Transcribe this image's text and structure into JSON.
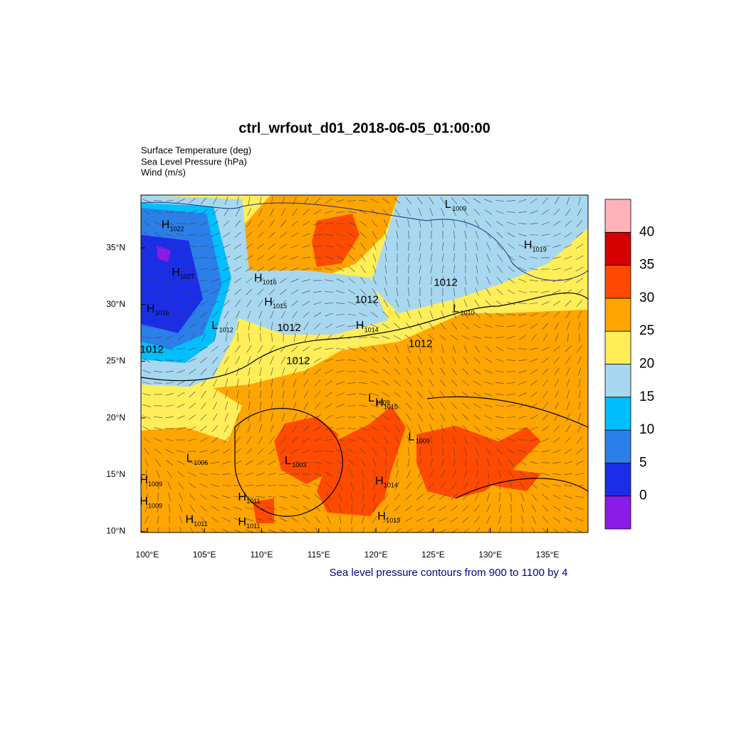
{
  "title": "ctrl_wrfout_d01_2018-06-05_01:00:00",
  "variables": [
    "Surface Temperature (deg)",
    "Sea Level Pressure (hPa)",
    "Wind (m/s)"
  ],
  "map": {
    "xlim": [
      99.45,
      138.55
    ],
    "ylim": [
      9.9,
      39.65
    ],
    "xticks": [
      {
        "value": 100,
        "label": "100°E"
      },
      {
        "value": 105,
        "label": "105°E"
      },
      {
        "value": 110,
        "label": "110°E"
      },
      {
        "value": 115,
        "label": "115°E"
      },
      {
        "value": 120,
        "label": "120°E"
      },
      {
        "value": 125,
        "label": "125°E"
      },
      {
        "value": 130,
        "label": "130°E"
      },
      {
        "value": 135,
        "label": "135°E"
      }
    ],
    "yticks": [
      {
        "value": 10,
        "label": "10°N"
      },
      {
        "value": 15,
        "label": "15°N"
      },
      {
        "value": 20,
        "label": "20°N"
      },
      {
        "value": 25,
        "label": "25°N"
      },
      {
        "value": 30,
        "label": "30°N"
      },
      {
        "value": 35,
        "label": "35°N"
      }
    ],
    "pressure_centers": [
      {
        "label": "H",
        "value": 1022,
        "lon": 101.6,
        "lat": 37.0
      },
      {
        "label": "H",
        "value": 1027,
        "lon": 102.5,
        "lat": 32.8
      },
      {
        "label": "H",
        "value": 1016,
        "lon": 100.3,
        "lat": 29.6
      },
      {
        "label": "H",
        "value": 1016,
        "lon": 109.7,
        "lat": 32.3
      },
      {
        "label": "H",
        "value": 1015,
        "lon": 110.6,
        "lat": 30.2
      },
      {
        "label": "L",
        "value": 1012,
        "lon": 105.9,
        "lat": 28.1
      },
      {
        "label": "H",
        "value": 1014,
        "lon": 118.6,
        "lat": 28.1
      },
      {
        "label": "L",
        "value": 1009,
        "lon": 126.3,
        "lat": 38.8
      },
      {
        "label": "H",
        "value": 1019,
        "lon": 133.3,
        "lat": 35.2
      },
      {
        "label": "L",
        "value": 1010,
        "lon": 127.0,
        "lat": 29.6
      },
      {
        "label": "L",
        "value": 1009,
        "lon": 119.6,
        "lat": 21.7
      },
      {
        "label": "H",
        "value": 1015,
        "lon": 120.3,
        "lat": 21.3
      },
      {
        "label": "L",
        "value": 1009,
        "lon": 123.1,
        "lat": 18.3
      },
      {
        "label": "L",
        "value": 1006,
        "lon": 103.7,
        "lat": 16.4
      },
      {
        "label": "L",
        "value": 1003,
        "lon": 112.3,
        "lat": 16.2
      },
      {
        "label": "H",
        "value": 1009,
        "lon": 99.7,
        "lat": 14.5
      },
      {
        "label": "H",
        "value": 1014,
        "lon": 120.3,
        "lat": 14.4
      },
      {
        "label": "H",
        "value": 1011,
        "lon": 108.3,
        "lat": 13.0
      },
      {
        "label": "H",
        "value": 1009,
        "lon": 99.7,
        "lat": 12.6
      },
      {
        "label": "H",
        "value": 1011,
        "lon": 103.7,
        "lat": 11.0
      },
      {
        "label": "H",
        "value": 1011,
        "lon": 108.3,
        "lat": 10.8
      },
      {
        "label": "H",
        "value": 1013,
        "lon": 120.5,
        "lat": 11.3
      }
    ],
    "contour_labels": [
      {
        "value": 1012,
        "lon": 119.2,
        "lat": 30.4
      },
      {
        "value": 1012,
        "lon": 112.4,
        "lat": 27.9
      },
      {
        "value": 1012,
        "lon": 113.2,
        "lat": 25.0
      },
      {
        "value": 1012,
        "lon": 126.1,
        "lat": 31.9
      },
      {
        "value": 1012,
        "lon": 123.9,
        "lat": 26.5
      },
      {
        "value": 1012,
        "lon": 100.4,
        "lat": 26.0
      }
    ]
  },
  "colorbar": {
    "levels": [
      0,
      5,
      10,
      15,
      20,
      25,
      30,
      35,
      40
    ],
    "colors": [
      "#8c1ae8",
      "#1a2ee8",
      "#2b7fe8",
      "#00bfff",
      "#a8d8f0",
      "#ffee58",
      "#ffa500",
      "#ff4a00",
      "#d60000",
      "#ffb3b8"
    ]
  },
  "note": "Sea level pressure contours from 900 to 1100 by 4"
}
